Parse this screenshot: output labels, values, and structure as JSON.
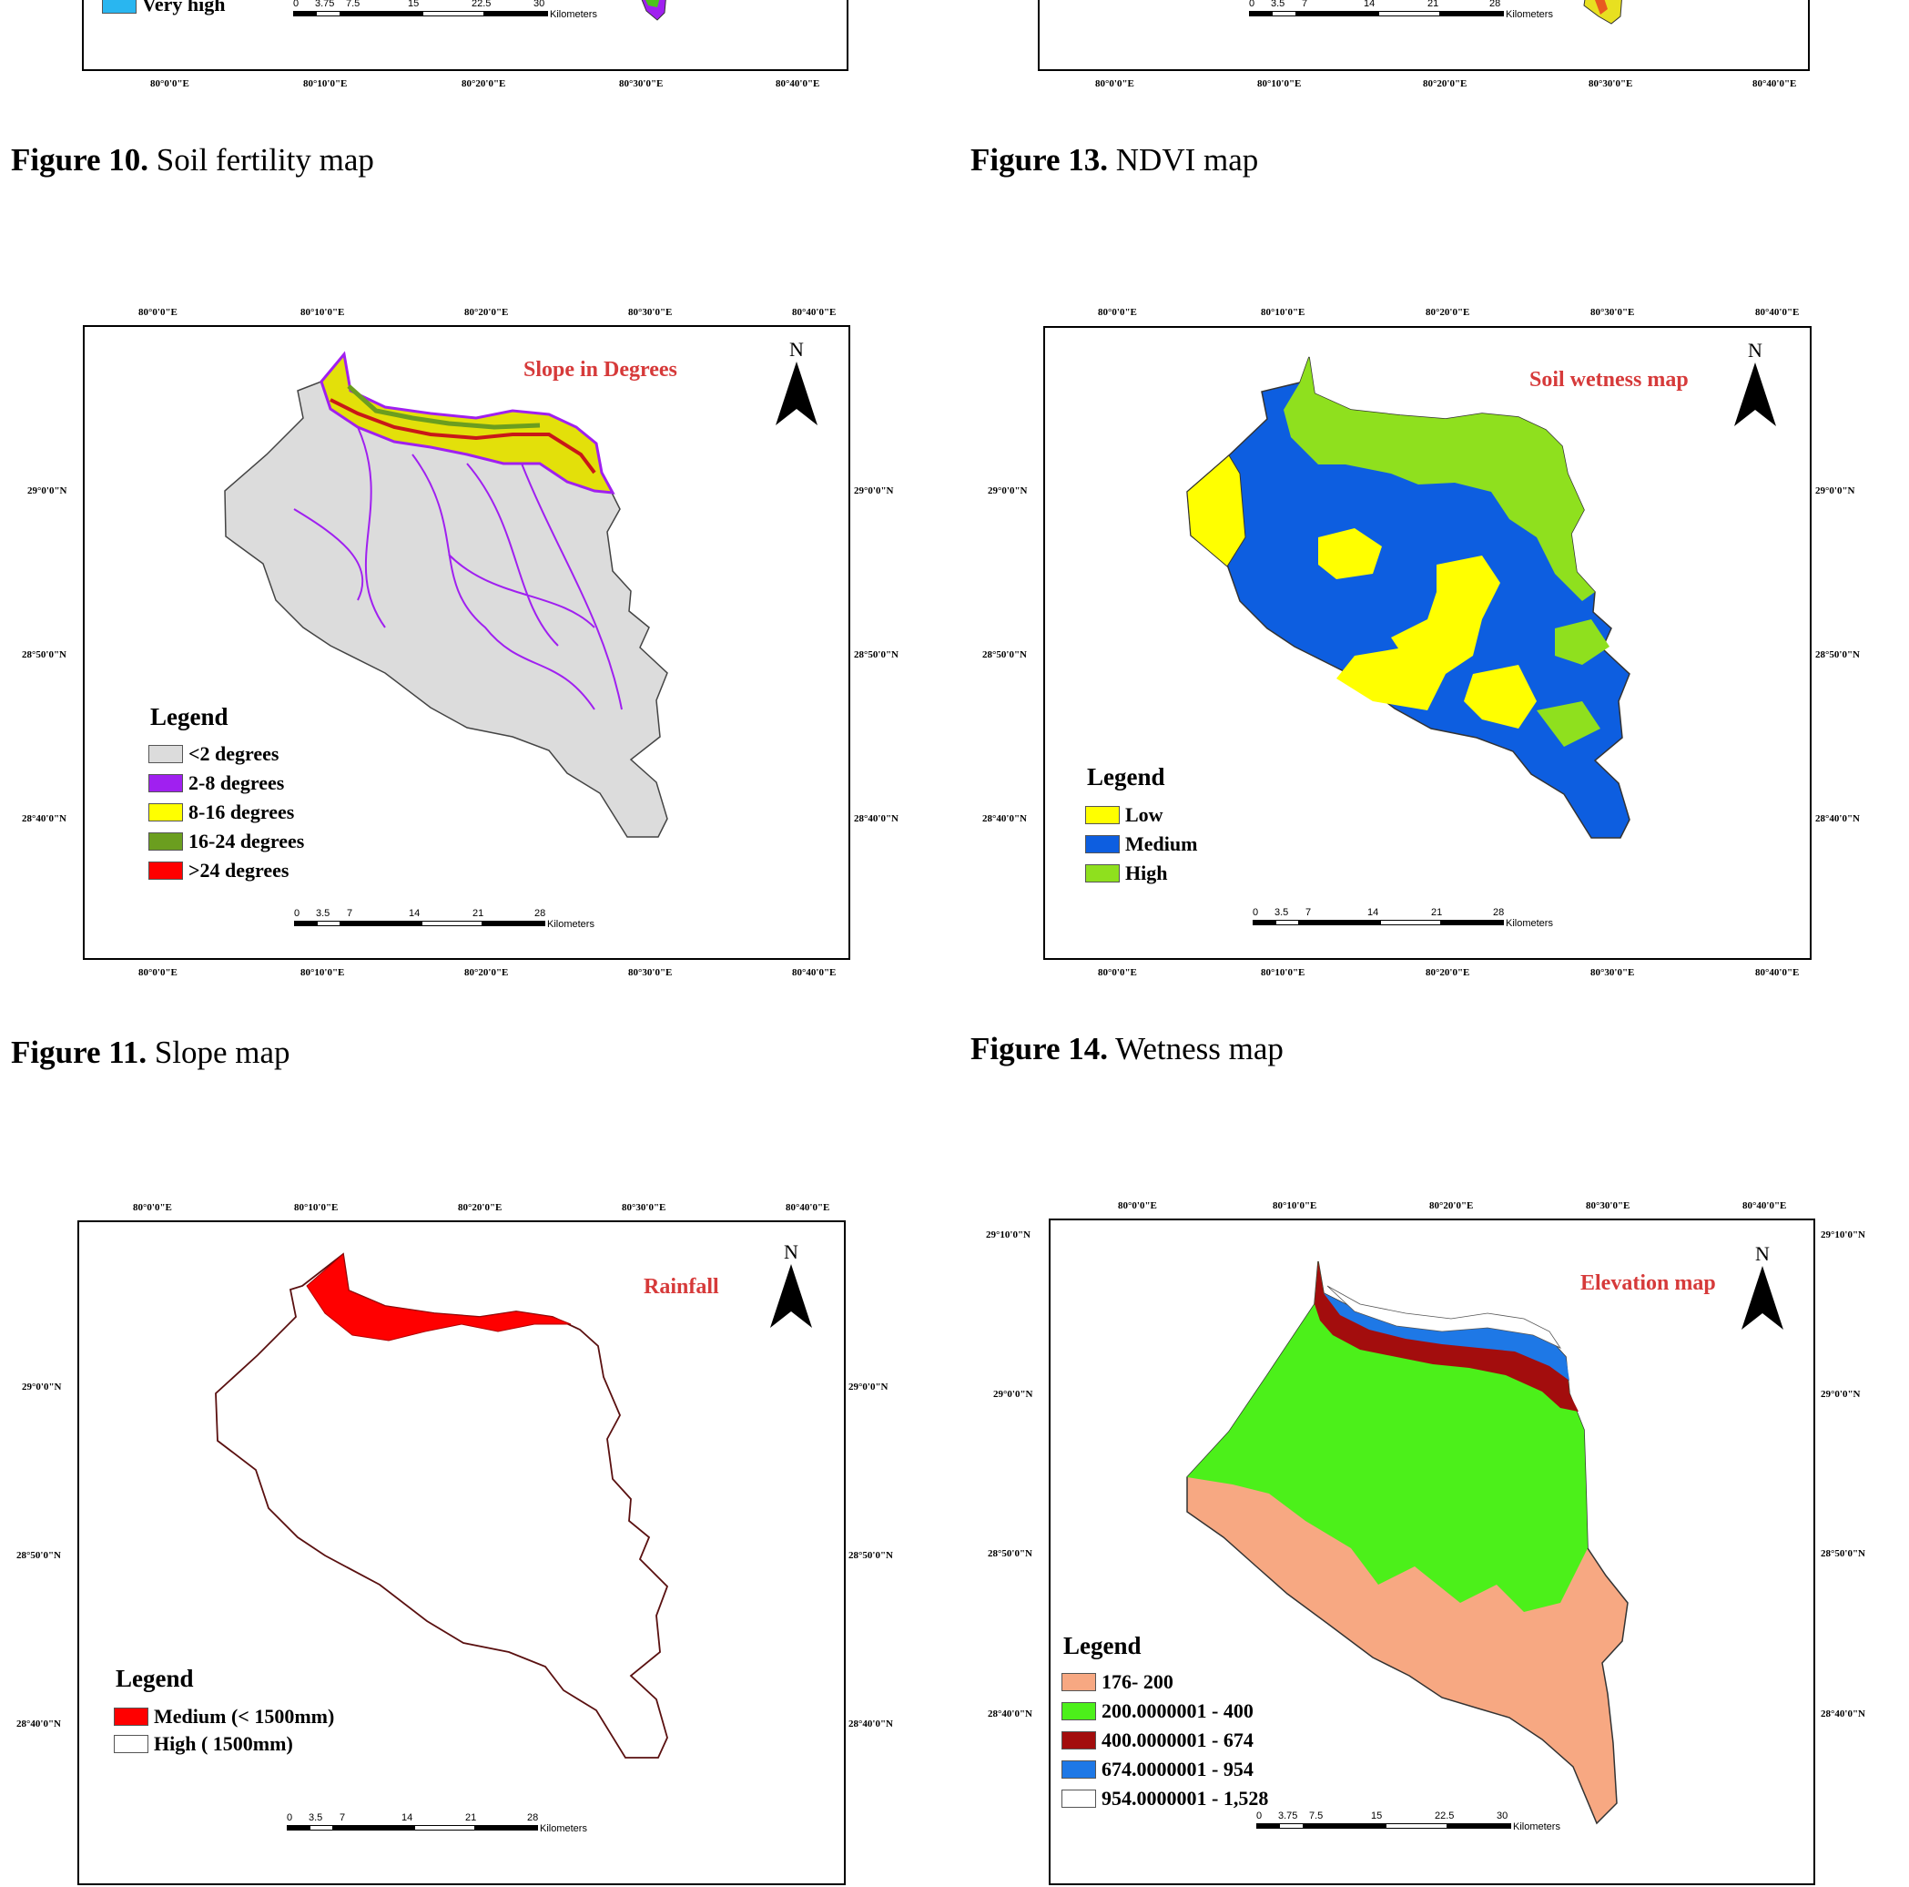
{
  "captions": {
    "fig10": {
      "num": "Figure 10.",
      "text": "Soil fertility map"
    },
    "fig13": {
      "num": "Figure 13.",
      "text": "NDVI map"
    },
    "fig11": {
      "num": "Figure 11.",
      "text": "Slope map"
    },
    "fig14": {
      "num": "Figure 14.",
      "text": "Wetness map"
    }
  },
  "lon_ticks": [
    "80°0'0\"E",
    "80°10'0\"E",
    "80°20'0\"E",
    "80°30'0\"E",
    "80°40'0\"E"
  ],
  "lat_ticks": {
    "n29": "29°0'0\"N",
    "n2850": "28°50'0\"N",
    "n2840": "28°40'0\"N",
    "n2910": "29°10'0\"N"
  },
  "north_label": "N",
  "km_label": "Kilometers",
  "scale_a": [
    "0",
    "3.5",
    "7",
    "14",
    "21",
    "28"
  ],
  "scale_b": [
    "0",
    "3.75",
    "7.5",
    "15",
    "22.5",
    "30"
  ],
  "fig10_partial": {
    "legend_last": "Very high",
    "swatch_color": "#29b6f0"
  },
  "slope_map": {
    "title": "Slope in Degrees",
    "legend_title": "Legend",
    "items": [
      {
        "label": "<2 degrees",
        "color": "#dcdcdc"
      },
      {
        "label": "2-8 degrees",
        "color": "#a020f0"
      },
      {
        "label": "8-16 degrees",
        "color": "#ffff00"
      },
      {
        "label": "16-24 degrees",
        "color": "#6b9e1f"
      },
      {
        "label": ">24 degrees",
        "color": "#ff0000"
      }
    ]
  },
  "wetness_map": {
    "title": "Soil wetness map",
    "legend_title": "Legend",
    "items": [
      {
        "label": "Low",
        "color": "#ffff00"
      },
      {
        "label": "Medium",
        "color": "#0d5ee0"
      },
      {
        "label": "High",
        "color": "#8fe01e"
      }
    ]
  },
  "rainfall_map": {
    "title": "Rainfall",
    "legend_title": "Legend",
    "items": [
      {
        "label": "Medium",
        "sub": "(< 1500mm)",
        "color": "#ff0000"
      },
      {
        "label": "High",
        "sub": "( 1500mm)",
        "color": "#ffffff"
      }
    ]
  },
  "elevation_map": {
    "title": "Elevation map",
    "legend_title": "Legend",
    "items": [
      {
        "label": "176- 200",
        "color": "#f7a882"
      },
      {
        "label": "200.0000001 - 400",
        "color": "#4cf01a"
      },
      {
        "label": "400.0000001 - 674",
        "color": "#a30d0d"
      },
      {
        "label": "674.0000001 - 954",
        "color": "#1e78e6"
      },
      {
        "label": "954.0000001 - 1,528",
        "color": "#ffffff"
      }
    ]
  }
}
